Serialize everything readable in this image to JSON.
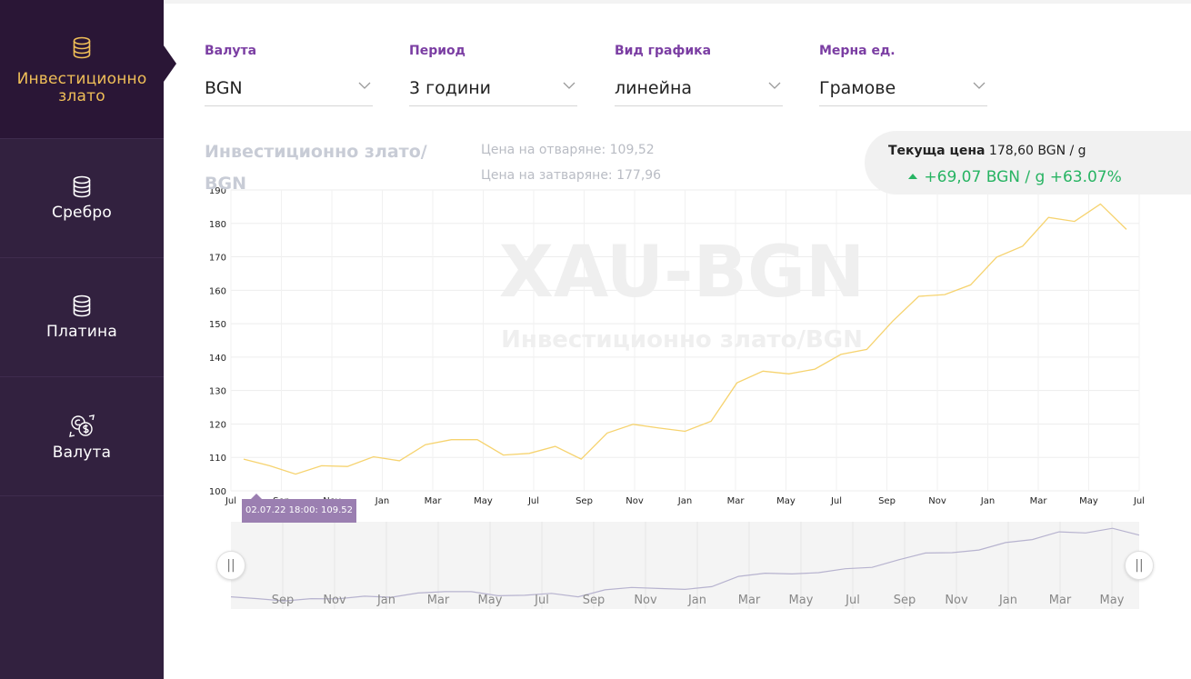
{
  "sidebar": {
    "items": [
      {
        "label": "Инвестиционно злато",
        "icon": "coins-stack-icon",
        "active": true
      },
      {
        "label": "Сребро",
        "icon": "coins-stack-icon"
      },
      {
        "label": "Платина",
        "icon": "coins-stack-icon"
      },
      {
        "label": "Валута",
        "icon": "currency-exchange-icon"
      }
    ]
  },
  "filters": {
    "currency": {
      "label": "Валута",
      "value": "BGN"
    },
    "period": {
      "label": "Период",
      "value": "3 години"
    },
    "chart_type": {
      "label": "Вид графика",
      "value": "линейна"
    },
    "unit": {
      "label": "Мерна ед.",
      "value": "Грамове"
    }
  },
  "chart_title": "Инвестиционно злато/ BGN",
  "open_price": "Цена на отваряне: 109,52",
  "close_price": "Цена на затваряне: 177,96",
  "current": {
    "label": "Текуща цена",
    "value": "178,60 BGN / g",
    "change": "+69,07 BGN / g +63.07%"
  },
  "watermark": {
    "main": "XAU-BGN",
    "sub": "Инвестиционно злато/BGN"
  },
  "tooltip": "02.07.22 18:00: 109.52",
  "colors": {
    "line": "#f6d36f",
    "accent": "#7b3ea3",
    "positive": "#28b463",
    "navigator_line": "#b7b3cf"
  },
  "chart_data": {
    "type": "line",
    "x_ticks": [
      "Jul",
      "Sep",
      "Nov",
      "Jan",
      "Mar",
      "May",
      "Jul",
      "Sep",
      "Nov",
      "Jan",
      "Mar",
      "May",
      "Jul",
      "Sep",
      "Nov",
      "Jan",
      "Mar",
      "May",
      "Jul"
    ],
    "navigator_ticks": [
      "Sep",
      "Nov",
      "Jan",
      "Mar",
      "May",
      "Jul",
      "Sep",
      "Nov",
      "Jan",
      "Mar",
      "May",
      "Jul",
      "Sep",
      "Nov",
      "Jan",
      "Mar",
      "May"
    ],
    "ylim": [
      100,
      190
    ],
    "y_ticks": [
      100,
      110,
      120,
      130,
      140,
      150,
      160,
      170,
      180,
      190
    ],
    "grid": true,
    "values": [
      109.5,
      107.5,
      105.0,
      107.5,
      107.3,
      110.2,
      109.0,
      113.8,
      115.3,
      115.3,
      110.7,
      111.2,
      113.3,
      109.5,
      117.3,
      119.9,
      118.8,
      117.8,
      120.8,
      132.3,
      135.8,
      135.0,
      136.4,
      140.8,
      142.3,
      150.8,
      158.2,
      158.7,
      161.6,
      169.9,
      173.2,
      181.8,
      180.6,
      185.8,
      178.2
    ]
  }
}
